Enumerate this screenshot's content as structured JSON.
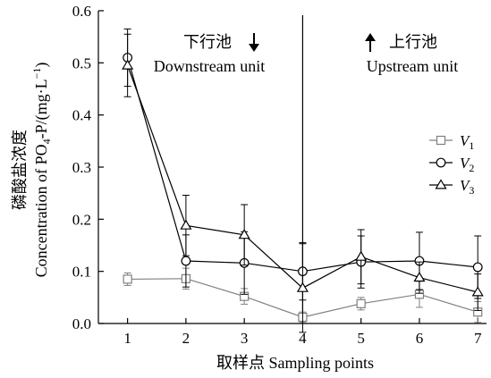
{
  "chart_data": {
    "type": "line",
    "categories": [
      "1",
      "2",
      "3",
      "4",
      "5",
      "6",
      "7"
    ],
    "x": [
      1,
      2,
      3,
      4,
      5,
      6,
      7
    ],
    "xlabel": "取样点 Sampling points",
    "ylabel_cn": "磷酸盐浓度",
    "ylabel_en_prefix": "Concentration of PO",
    "ylabel_en_sub": "4",
    "ylabel_en_mid": "-P/(mg·L",
    "ylabel_en_sup": "−1",
    "ylabel_en_suffix": ")",
    "ylim": [
      0,
      0.6
    ],
    "yticks": [
      0.0,
      0.1,
      0.2,
      0.3,
      0.4,
      0.5,
      0.6
    ],
    "ytick_labels": [
      "0.0",
      "0.1",
      "0.2",
      "0.3",
      "0.4",
      "0.5",
      "0.6"
    ],
    "xlim": [
      0.5,
      7.15
    ],
    "divider_x": 4,
    "legend_position": "right",
    "grid": false,
    "annotations": [
      {
        "cn": "下行池",
        "en": "Downstream unit",
        "arrow": "down"
      },
      {
        "cn": "上行池",
        "en": "Upstream unit",
        "arrow": "up"
      }
    ],
    "series": [
      {
        "name": "V",
        "sub": "1",
        "marker": "square",
        "color": "#808080",
        "values": [
          0.085,
          0.086,
          0.052,
          0.012,
          0.038,
          0.056,
          0.022
        ],
        "errors": [
          0.012,
          0.02,
          0.015,
          0.01,
          0.012,
          0.025,
          0.02
        ]
      },
      {
        "name": "V",
        "sub": "2",
        "marker": "circle",
        "color": "#000000",
        "values": [
          0.51,
          0.12,
          0.116,
          0.1,
          0.118,
          0.12,
          0.108
        ],
        "errors": [
          0.055,
          0.05,
          0.06,
          0.055,
          0.05,
          0.055,
          0.06
        ]
      },
      {
        "name": "V",
        "sub": "3",
        "marker": "triangle",
        "color": "#000000",
        "values": [
          0.495,
          0.188,
          0.17,
          0.068,
          0.128,
          0.088,
          0.06
        ],
        "errors": [
          0.06,
          0.058,
          0.058,
          0.085,
          0.052,
          0.03,
          0.035
        ]
      }
    ]
  }
}
